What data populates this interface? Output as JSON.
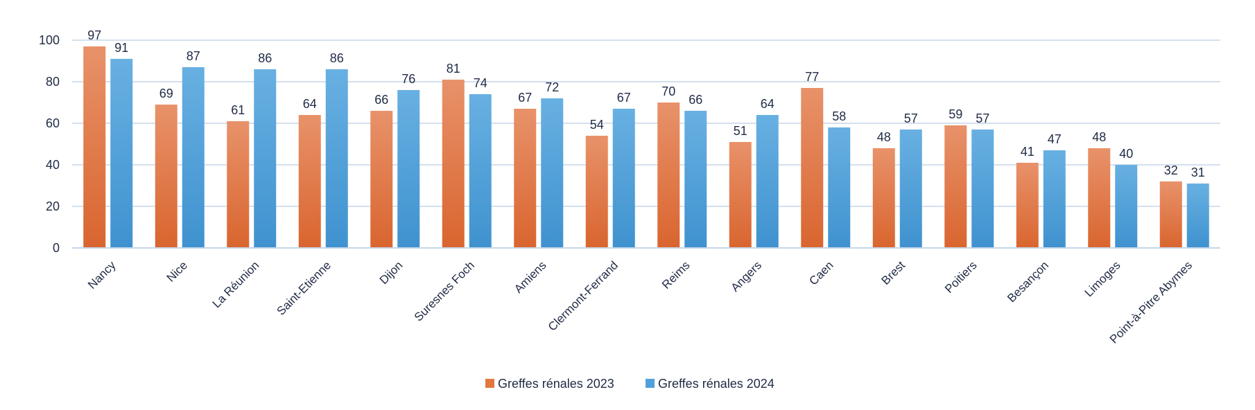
{
  "chart_data": {
    "type": "bar",
    "title": "",
    "xlabel": "",
    "ylabel": "",
    "ylim": [
      0,
      100
    ],
    "yticks": [
      0,
      20,
      40,
      60,
      80,
      100
    ],
    "grid": true,
    "legend_position": "bottom",
    "categories": [
      "Nancy",
      "Nice",
      "La Réunion",
      "Saint-Etienne",
      "Dijon",
      "Suresnes Foch",
      "Amiens",
      "Clermont-Ferrand",
      "Reims",
      "Angers",
      "Caen",
      "Brest",
      "Poitiers",
      "Besançon",
      "Limoges",
      "Point-à-Pitre Abymes"
    ],
    "series": [
      {
        "name": "Greffes rénales 2023",
        "color": "#e3783f",
        "values": [
          97,
          69,
          61,
          64,
          66,
          81,
          67,
          54,
          70,
          51,
          77,
          48,
          59,
          41,
          48,
          32
        ]
      },
      {
        "name": "Greffes rénales 2024",
        "color": "#4ea1da",
        "values": [
          91,
          87,
          86,
          86,
          76,
          74,
          72,
          67,
          66,
          64,
          58,
          57,
          57,
          47,
          40,
          31
        ]
      }
    ]
  }
}
